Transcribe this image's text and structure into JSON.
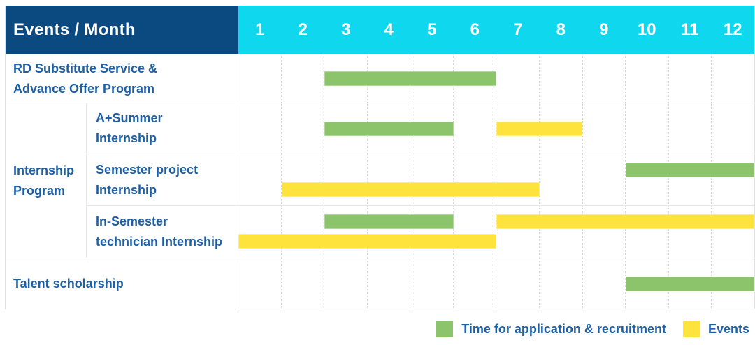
{
  "colors": {
    "header_navy": "#0b4a80",
    "header_cyan": "#0fd7ee",
    "label_blue": "#1f5fa3",
    "green": "#8bc46a",
    "yellow": "#ffe33d",
    "gridline": "#d9d9d9",
    "row_line": "#e8e8e8"
  },
  "chart_data": {
    "type": "table",
    "subtype": "gantt",
    "corner_label": "Events / Month",
    "months": [
      "1",
      "2",
      "3",
      "4",
      "5",
      "6",
      "7",
      "8",
      "9",
      "10",
      "11",
      "12"
    ],
    "axis": {
      "month_min": 1,
      "month_max": 12
    },
    "series": {
      "application": {
        "name": "Time for application & recruitment",
        "color": "#8bc46a"
      },
      "events": {
        "name": "Events",
        "color": "#ffe33d"
      }
    },
    "group": {
      "label_lines": [
        "Internship",
        "Program"
      ],
      "child_ids": [
        "a-summer-internship",
        "semester-project-internship",
        "in-semester-technician-internship"
      ]
    },
    "rows": [
      {
        "id": "rd-substitute-service",
        "label_lines": [
          "RD Substitute Service &",
          "Advance Offer Program"
        ],
        "in_group": false,
        "bars": [
          {
            "series": "application",
            "start_month": 3,
            "end_month": 6,
            "lane": "mid"
          }
        ]
      },
      {
        "id": "a-summer-internship",
        "label_lines": [
          "A+Summer",
          "Internship"
        ],
        "in_group": true,
        "bars": [
          {
            "series": "application",
            "start_month": 3,
            "end_month": 5,
            "lane": "mid"
          },
          {
            "series": "events",
            "start_month": 7,
            "end_month": 8,
            "lane": "mid"
          }
        ]
      },
      {
        "id": "semester-project-internship",
        "label_lines": [
          "Semester project",
          "Internship"
        ],
        "in_group": true,
        "bars": [
          {
            "series": "application",
            "start_month": 10,
            "end_month": 12,
            "lane": "top"
          },
          {
            "series": "events",
            "start_month": 2,
            "end_month": 7,
            "lane": "bottom"
          }
        ]
      },
      {
        "id": "in-semester-technician-internship",
        "label_lines": [
          "In-Semester",
          "technician Internship"
        ],
        "in_group": true,
        "bars": [
          {
            "series": "application",
            "start_month": 3,
            "end_month": 5,
            "lane": "top"
          },
          {
            "series": "events",
            "start_month": 7,
            "end_month": 12,
            "lane": "top"
          },
          {
            "series": "events",
            "start_month": 1,
            "end_month": 6,
            "lane": "bottom"
          }
        ]
      },
      {
        "id": "talent-scholarship",
        "label_lines": [
          "Talent scholarship"
        ],
        "in_group": false,
        "bars": [
          {
            "series": "application",
            "start_month": 10,
            "end_month": 12,
            "lane": "mid"
          }
        ]
      }
    ],
    "legend": [
      {
        "series": "application",
        "label": "Time for application & recruitment"
      },
      {
        "series": "events",
        "label": "Events"
      }
    ]
  }
}
